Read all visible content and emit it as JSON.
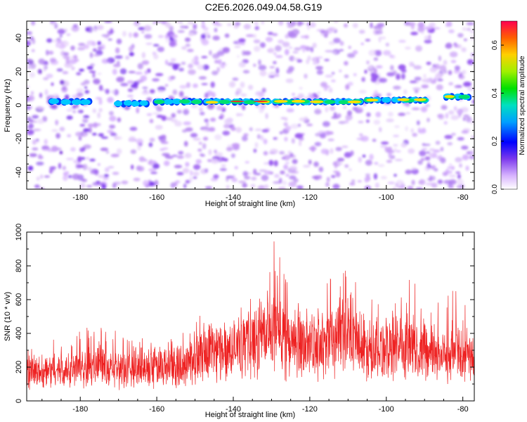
{
  "title": "C2E6.2026.049.04.58.G19",
  "colors": {
    "signal": "#ff2020",
    "snr_line": "#ee2222",
    "axis": "#000000"
  },
  "chart_data": [
    {
      "type": "heatmap",
      "name": "spectrogram",
      "xlabel": "Height of straight line (km)",
      "ylabel": "Frequency (Hz)",
      "xlim": [
        -194,
        -77
      ],
      "ylim": [
        -50,
        50
      ],
      "x_ticks": [
        -180,
        -160,
        -140,
        -120,
        -100,
        -80
      ],
      "x_tick_labels": [
        "-180",
        "-160",
        "-140",
        "-120",
        "-100",
        "-80"
      ],
      "y_ticks": [
        -40,
        -20,
        0,
        20,
        40
      ],
      "y_tick_labels": [
        "-40",
        "-20",
        "0",
        "20",
        "40"
      ],
      "colorbar": {
        "label": "Normalized spectral amplitude",
        "range": [
          0,
          0.7
        ],
        "ticks": [
          0.0,
          0.2,
          0.4,
          0.6
        ],
        "tick_labels": [
          "0.0",
          "0.2",
          "0.4",
          "0.6"
        ]
      },
      "signal_band": {
        "description": "narrow band near 0-5 Hz",
        "segments": [
          {
            "x_start": -188,
            "x_end": -177,
            "freq_hz": 2,
            "amplitude": 0.25
          },
          {
            "x_start": -171,
            "x_end": -162,
            "freq_hz": 1,
            "amplitude": 0.2
          },
          {
            "x_start": -161,
            "x_end": -148,
            "freq_hz": 2,
            "amplitude": 0.35
          },
          {
            "x_start": -148,
            "x_end": -130,
            "freq_hz": 2,
            "amplitude": 0.6
          },
          {
            "x_start": -130,
            "x_end": -106,
            "freq_hz": 2,
            "amplitude": 0.55
          },
          {
            "x_start": -106,
            "x_end": -89,
            "freq_hz": 3,
            "amplitude": 0.55
          },
          {
            "x_start": -85,
            "x_end": -78,
            "freq_hz": 5,
            "amplitude": 0.55
          }
        ]
      }
    },
    {
      "type": "line",
      "name": "snr",
      "xlabel": "Height of straight line (km)",
      "ylabel": "SNR (10 * v/v)",
      "xlim": [
        -194,
        -77
      ],
      "ylim": [
        0,
        1000
      ],
      "x_ticks": [
        -180,
        -160,
        -140,
        -120,
        -100,
        -80
      ],
      "x_tick_labels": [
        "-180",
        "-160",
        "-140",
        "-120",
        "-100",
        "-80"
      ],
      "y_ticks": [
        0,
        200,
        400,
        600,
        800,
        1000
      ],
      "y_tick_labels": [
        "0",
        "200",
        "400",
        "600",
        "800",
        "1000"
      ],
      "envelope": [
        {
          "x": -194,
          "base": 150,
          "peak": 300
        },
        {
          "x": -180,
          "base": 160,
          "peak": 450
        },
        {
          "x": -170,
          "base": 150,
          "peak": 420
        },
        {
          "x": -160,
          "base": 180,
          "peak": 350
        },
        {
          "x": -152,
          "base": 200,
          "peak": 420
        },
        {
          "x": -148,
          "base": 250,
          "peak": 560
        },
        {
          "x": -140,
          "base": 280,
          "peak": 480
        },
        {
          "x": -134,
          "base": 300,
          "peak": 700
        },
        {
          "x": -130,
          "base": 320,
          "peak": 1000
        },
        {
          "x": -124,
          "base": 300,
          "peak": 600
        },
        {
          "x": -118,
          "base": 280,
          "peak": 550
        },
        {
          "x": -112,
          "base": 320,
          "peak": 940
        },
        {
          "x": -108,
          "base": 300,
          "peak": 720
        },
        {
          "x": -100,
          "base": 270,
          "peak": 520
        },
        {
          "x": -95,
          "base": 280,
          "peak": 740
        },
        {
          "x": -88,
          "base": 230,
          "peak": 620
        },
        {
          "x": -82,
          "base": 220,
          "peak": 680
        },
        {
          "x": -77,
          "base": 200,
          "peak": 560
        }
      ]
    }
  ]
}
